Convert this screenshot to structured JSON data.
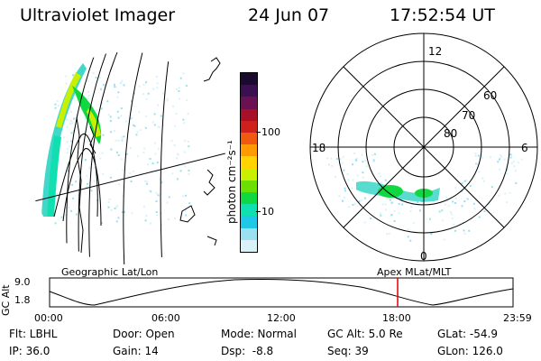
{
  "header": {
    "instrument": "Ultraviolet Imager",
    "date": "24 Jun 07",
    "time": "17:52:54 UT"
  },
  "colorbar": {
    "unit_label": "photon cm⁻²s⁻¹",
    "ticks": [
      "100",
      "10"
    ],
    "colors": [
      "#1a0a2e",
      "#3a1050",
      "#6b1050",
      "#a8102a",
      "#d0201c",
      "#f05a10",
      "#ff9a00",
      "#ffd400",
      "#c8f000",
      "#6be000",
      "#10d840",
      "#10e0b0",
      "#20c8e8",
      "#9ae0f0",
      "#d8f2f8"
    ]
  },
  "polar_plot": {
    "mlt_labels": {
      "top": "12",
      "left": "18",
      "right": "6",
      "bottom": "0"
    },
    "lat_labels": [
      "60",
      "70",
      "80"
    ]
  },
  "timeline": {
    "left_title": "Geographic Lat/Lon",
    "right_title": "Apex MLat/MLT",
    "y_axis_label": "GC Alt",
    "y_ticks": [
      "9.0",
      "1.8"
    ],
    "x_ticks": [
      "00:00",
      "06:00",
      "12:00",
      "18:00",
      "23:59"
    ],
    "current_marker_color": "#e00000"
  },
  "info": {
    "flt": "Flt: LBHL",
    "door": "Door: Open",
    "mode": "Mode: Normal",
    "gc_alt": "GC Alt: 5.0 Re",
    "glat": "GLat: -54.9",
    "ip": "IP: 36.0",
    "gain": "Gain: 14",
    "dsp": "Dsp:  -8.8",
    "seq": "Seq: 39",
    "glon": "GLon: 126.0"
  }
}
